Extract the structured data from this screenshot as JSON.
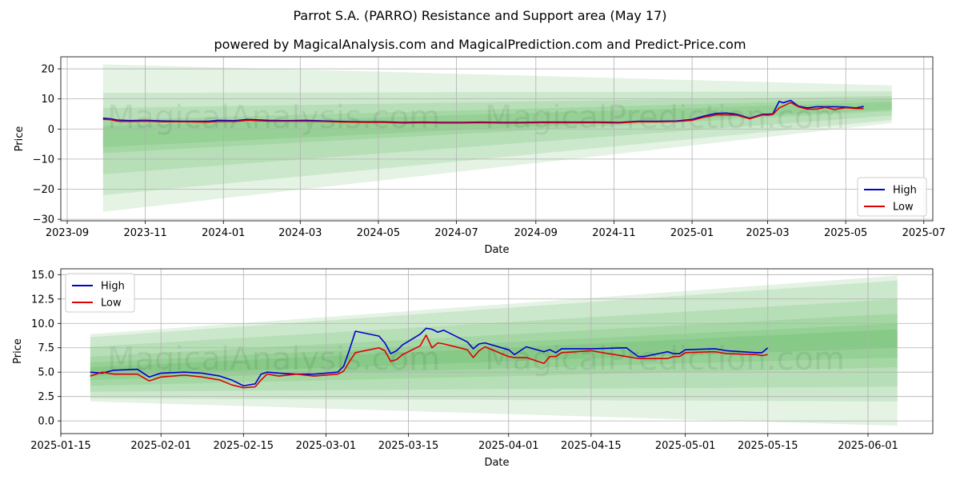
{
  "title": "Parrot S.A. (PARRO) Resistance and Support area (May 17)",
  "subtitle": "powered by MagicalAnalysis.com and MagicalPrediction.com and Predict-Price.com",
  "watermarks": [
    "MagicalAnalysis.com",
    "MagicalPrediction.com"
  ],
  "colors": {
    "high": "#0000cc",
    "low": "#dd0000",
    "band": "#2ca02c"
  },
  "chart_data": [
    {
      "type": "line",
      "xlabel": "Date",
      "ylabel": "Price",
      "xlim": [
        "2023-08-27",
        "2025-07-08"
      ],
      "ylim": [
        -30.5,
        24
      ],
      "grid": true,
      "legend_position": "lower-right",
      "xticks": [
        "2023-09",
        "2023-11",
        "2024-01",
        "2024-03",
        "2024-05",
        "2024-07",
        "2024-09",
        "2024-11",
        "2025-01",
        "2025-03",
        "2025-05",
        "2025-07"
      ],
      "yticks": [
        -30,
        -20,
        -10,
        0,
        10,
        20
      ],
      "series": [
        {
          "name": "High",
          "x": [
            "2023-09-29",
            "2023-10-05",
            "2023-10-10",
            "2023-10-20",
            "2023-11-01",
            "2023-11-15",
            "2023-12-01",
            "2023-12-20",
            "2023-12-28",
            "2024-01-10",
            "2024-01-20",
            "2024-02-05",
            "2024-02-20",
            "2024-03-05",
            "2024-03-20",
            "2024-04-05",
            "2024-04-20",
            "2024-05-05",
            "2024-05-20",
            "2024-06-05",
            "2024-06-20",
            "2024-07-05",
            "2024-07-20",
            "2024-08-05",
            "2024-08-20",
            "2024-09-05",
            "2024-09-20",
            "2024-10-05",
            "2024-10-20",
            "2024-11-05",
            "2024-11-20",
            "2024-12-05",
            "2024-12-20",
            "2025-01-01",
            "2025-01-10",
            "2025-01-20",
            "2025-01-28",
            "2025-02-05",
            "2025-02-15",
            "2025-02-25",
            "2025-03-01",
            "2025-03-05",
            "2025-03-10",
            "2025-03-13",
            "2025-03-19",
            "2025-03-25",
            "2025-04-01",
            "2025-04-08",
            "2025-04-15",
            "2025-04-22",
            "2025-05-01",
            "2025-05-09",
            "2025-05-15"
          ],
          "y": [
            3.6,
            3.4,
            3.0,
            2.8,
            2.9,
            2.7,
            2.6,
            2.6,
            2.9,
            2.8,
            3.2,
            2.9,
            2.8,
            2.9,
            2.7,
            2.5,
            2.4,
            2.4,
            2.2,
            2.3,
            2.2,
            2.2,
            2.3,
            2.2,
            2.2,
            2.3,
            2.3,
            2.3,
            2.3,
            2.2,
            2.6,
            2.6,
            2.7,
            3.2,
            4.3,
            5.2,
            5.3,
            4.9,
            3.6,
            4.9,
            4.9,
            5.0,
            9.2,
            8.7,
            9.5,
            7.6,
            7.0,
            7.4,
            7.4,
            7.4,
            7.3,
            7.0,
            7.5
          ]
        },
        {
          "name": "Low",
          "x": [
            "2023-09-29",
            "2023-10-05",
            "2023-10-10",
            "2023-10-20",
            "2023-11-01",
            "2023-11-15",
            "2023-12-01",
            "2023-12-20",
            "2023-12-28",
            "2024-01-10",
            "2024-01-20",
            "2024-02-05",
            "2024-02-20",
            "2024-03-05",
            "2024-03-20",
            "2024-04-05",
            "2024-04-20",
            "2024-05-05",
            "2024-05-20",
            "2024-06-05",
            "2024-06-20",
            "2024-07-05",
            "2024-07-20",
            "2024-08-05",
            "2024-08-20",
            "2024-09-05",
            "2024-09-20",
            "2024-10-05",
            "2024-10-20",
            "2024-11-05",
            "2024-11-20",
            "2024-12-05",
            "2024-12-20",
            "2025-01-01",
            "2025-01-10",
            "2025-01-20",
            "2025-01-28",
            "2025-02-05",
            "2025-02-15",
            "2025-02-25",
            "2025-03-01",
            "2025-03-05",
            "2025-03-10",
            "2025-03-13",
            "2025-03-19",
            "2025-03-25",
            "2025-04-01",
            "2025-04-08",
            "2025-04-15",
            "2025-04-22",
            "2025-05-01",
            "2025-05-09",
            "2025-05-15"
          ],
          "y": [
            3.2,
            3.1,
            2.6,
            2.5,
            2.6,
            2.4,
            2.4,
            2.3,
            2.5,
            2.5,
            2.9,
            2.6,
            2.6,
            2.6,
            2.5,
            2.3,
            2.2,
            2.2,
            2.0,
            2.1,
            2.0,
            2.0,
            2.1,
            2.0,
            2.0,
            2.1,
            2.1,
            2.1,
            2.1,
            2.0,
            2.4,
            2.4,
            2.5,
            2.9,
            3.9,
            4.7,
            4.7,
            4.6,
            3.4,
            4.7,
            4.6,
            4.8,
            7.0,
            7.6,
            8.8,
            7.4,
            6.6,
            6.6,
            7.2,
            6.5,
            7.1,
            6.8,
            6.8
          ]
        }
      ],
      "bands": [
        {
          "x": [
            "2023-09-29",
            "2025-06-06"
          ],
          "lower": [
            -27.5,
            2.0
          ],
          "upper": [
            21.5,
            14.5
          ]
        },
        {
          "x": [
            "2023-09-29",
            "2025-06-06"
          ],
          "lower": [
            -22.0,
            3.0
          ],
          "upper": [
            12.0,
            12.5
          ]
        },
        {
          "x": [
            "2023-09-29",
            "2025-06-06"
          ],
          "lower": [
            -15.0,
            4.5
          ],
          "upper": [
            7.0,
            11.0
          ]
        },
        {
          "x": [
            "2023-09-29",
            "2025-06-06"
          ],
          "lower": [
            -8.0,
            6.0
          ],
          "upper": [
            3.0,
            10.0
          ]
        },
        {
          "x": [
            "2023-09-29",
            "2025-06-06"
          ],
          "lower": [
            -6.0,
            6.5
          ],
          "upper": [
            1.0,
            9.0
          ]
        }
      ]
    },
    {
      "type": "line",
      "xlabel": "Date",
      "ylabel": "Price",
      "xlim": [
        "2025-01-15",
        "2025-06-12"
      ],
      "ylim": [
        -1.3,
        15.6
      ],
      "grid": true,
      "legend_position": "upper-left",
      "xticks": [
        "2025-01-15",
        "2025-02-01",
        "2025-02-15",
        "2025-03-01",
        "2025-03-15",
        "2025-04-01",
        "2025-04-15",
        "2025-05-01",
        "2025-05-15",
        "2025-06-01"
      ],
      "yticks": [
        "0.0",
        "2.5",
        "5.0",
        "7.5",
        "10.0",
        "12.5",
        "15.0"
      ],
      "series": [
        {
          "name": "High",
          "x": [
            "2025-01-20",
            "2025-01-22",
            "2025-01-24",
            "2025-01-28",
            "2025-01-30",
            "2025-02-01",
            "2025-02-05",
            "2025-02-08",
            "2025-02-11",
            "2025-02-13",
            "2025-02-15",
            "2025-02-17",
            "2025-02-18",
            "2025-02-19",
            "2025-02-21",
            "2025-02-24",
            "2025-02-27",
            "2025-03-03",
            "2025-03-04",
            "2025-03-05",
            "2025-03-06",
            "2025-03-10",
            "2025-03-11",
            "2025-03-12",
            "2025-03-13",
            "2025-03-14",
            "2025-03-17",
            "2025-03-18",
            "2025-03-19",
            "2025-03-20",
            "2025-03-21",
            "2025-03-25",
            "2025-03-26",
            "2025-03-27",
            "2025-03-28",
            "2025-04-01",
            "2025-04-02",
            "2025-04-04",
            "2025-04-07",
            "2025-04-08",
            "2025-04-09",
            "2025-04-10",
            "2025-04-15",
            "2025-04-21",
            "2025-04-23",
            "2025-04-24",
            "2025-04-28",
            "2025-04-29",
            "2025-04-30",
            "2025-05-01",
            "2025-05-06",
            "2025-05-08",
            "2025-05-13",
            "2025-05-14",
            "2025-05-15"
          ],
          "y": [
            5.0,
            4.9,
            5.2,
            5.3,
            4.5,
            4.9,
            5.0,
            4.9,
            4.6,
            4.2,
            3.6,
            3.8,
            4.8,
            5.0,
            4.9,
            4.8,
            4.8,
            5.0,
            5.6,
            7.3,
            9.2,
            8.7,
            8.0,
            6.9,
            7.2,
            7.8,
            8.9,
            9.5,
            9.4,
            9.1,
            9.3,
            8.1,
            7.4,
            7.9,
            8.0,
            7.3,
            6.8,
            7.6,
            7.1,
            7.3,
            7.0,
            7.4,
            7.4,
            7.5,
            6.6,
            6.6,
            7.1,
            6.9,
            6.9,
            7.3,
            7.4,
            7.2,
            7.0,
            7.0,
            7.5
          ]
        },
        {
          "name": "Low",
          "x": [
            "2025-01-20",
            "2025-01-22",
            "2025-01-24",
            "2025-01-28",
            "2025-01-30",
            "2025-02-01",
            "2025-02-05",
            "2025-02-08",
            "2025-02-11",
            "2025-02-13",
            "2025-02-15",
            "2025-02-17",
            "2025-02-18",
            "2025-02-19",
            "2025-02-21",
            "2025-02-24",
            "2025-02-27",
            "2025-03-03",
            "2025-03-04",
            "2025-03-05",
            "2025-03-06",
            "2025-03-10",
            "2025-03-11",
            "2025-03-12",
            "2025-03-13",
            "2025-03-14",
            "2025-03-17",
            "2025-03-18",
            "2025-03-19",
            "2025-03-20",
            "2025-03-21",
            "2025-03-25",
            "2025-03-26",
            "2025-03-27",
            "2025-03-28",
            "2025-04-01",
            "2025-04-02",
            "2025-04-04",
            "2025-04-07",
            "2025-04-08",
            "2025-04-09",
            "2025-04-10",
            "2025-04-15",
            "2025-04-21",
            "2025-04-23",
            "2025-04-24",
            "2025-04-28",
            "2025-04-29",
            "2025-04-30",
            "2025-05-01",
            "2025-05-06",
            "2025-05-08",
            "2025-05-13",
            "2025-05-14",
            "2025-05-15"
          ],
          "y": [
            4.6,
            5.0,
            4.8,
            4.8,
            4.1,
            4.5,
            4.7,
            4.5,
            4.2,
            3.7,
            3.4,
            3.5,
            4.2,
            4.8,
            4.6,
            4.8,
            4.6,
            4.8,
            5.1,
            6.1,
            7.0,
            7.5,
            7.2,
            6.1,
            6.3,
            6.8,
            7.7,
            8.8,
            7.5,
            8.0,
            7.9,
            7.3,
            6.5,
            7.2,
            7.6,
            6.6,
            6.5,
            6.5,
            5.9,
            6.6,
            6.6,
            7.0,
            7.2,
            6.6,
            6.4,
            6.4,
            6.4,
            6.6,
            6.6,
            7.0,
            7.1,
            6.9,
            6.8,
            6.7,
            6.8
          ]
        }
      ],
      "bands": [
        {
          "x": [
            "2025-01-20",
            "2025-06-06"
          ],
          "lower": [
            2.0,
            -0.5
          ],
          "upper": [
            8.9,
            14.9
          ]
        },
        {
          "x": [
            "2025-01-20",
            "2025-06-06"
          ],
          "lower": [
            2.3,
            2.0
          ],
          "upper": [
            8.6,
            14.4
          ]
        },
        {
          "x": [
            "2025-01-20",
            "2025-06-06"
          ],
          "lower": [
            3.0,
            3.5
          ],
          "upper": [
            7.6,
            12.5
          ]
        },
        {
          "x": [
            "2025-01-20",
            "2025-06-06"
          ],
          "lower": [
            3.6,
            5.5
          ],
          "upper": [
            6.6,
            11.0
          ]
        },
        {
          "x": [
            "2025-01-20",
            "2025-06-06"
          ],
          "lower": [
            4.2,
            6.5
          ],
          "upper": [
            6.0,
            10.0
          ]
        },
        {
          "x": [
            "2025-01-20",
            "2025-06-06"
          ],
          "lower": [
            4.6,
            7.5
          ],
          "upper": [
            5.5,
            9.4
          ]
        }
      ]
    }
  ]
}
